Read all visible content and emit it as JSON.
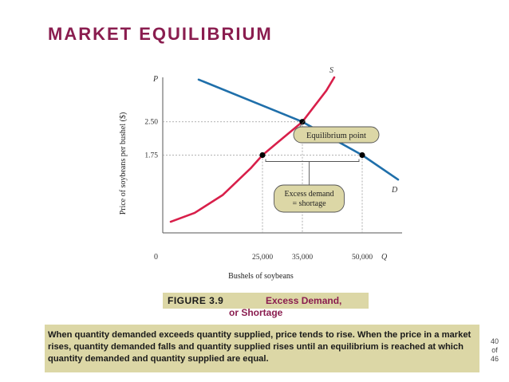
{
  "slide": {
    "title": "MARKET EQUILIBRIUM",
    "figure_number": "FIGURE 3.9",
    "figure_caption_line1": "Excess Demand,",
    "figure_caption_line2": "or Shortage",
    "description": "When quantity demanded exceeds quantity supplied, price tends to rise.  When the price in a market rises, quantity demanded falls and quantity supplied rises until an equilibrium is reached at which quantity demanded and quantity supplied are equal.",
    "page": {
      "current": "40",
      "of_label": "of",
      "total": "46"
    }
  },
  "chart_data": {
    "type": "line",
    "xlabel": "Bushels of soybeans",
    "ylabel": "Price of soybeans per bushel ($)",
    "x_axis_symbol": "Q",
    "y_axis_symbol": "P",
    "origin_label": "0",
    "xlim": [
      0,
      60000
    ],
    "ylim": [
      0,
      3.5
    ],
    "x_ticks": [
      {
        "value": 25000,
        "label": "25,000"
      },
      {
        "value": 35000,
        "label": "35,000"
      },
      {
        "value": 50000,
        "label": "50,000"
      }
    ],
    "y_ticks": [
      {
        "value": 2.5,
        "label": "2.50"
      },
      {
        "value": 1.75,
        "label": "1.75"
      }
    ],
    "grid": false,
    "series": [
      {
        "name": "S",
        "color": "#d81f4a",
        "points": [
          [
            2000,
            0.25
          ],
          [
            8000,
            0.45
          ],
          [
            15000,
            0.85
          ],
          [
            22000,
            1.45
          ],
          [
            25000,
            1.75
          ],
          [
            29000,
            2.05
          ],
          [
            33000,
            2.35
          ],
          [
            35000,
            2.5
          ],
          [
            38000,
            2.85
          ],
          [
            41000,
            3.2
          ],
          [
            43000,
            3.5
          ]
        ]
      },
      {
        "name": "D",
        "color": "#1f6faa",
        "points": [
          [
            9000,
            3.45
          ],
          [
            35000,
            2.5
          ],
          [
            50000,
            1.75
          ],
          [
            59000,
            1.2
          ]
        ]
      }
    ],
    "highlight_points": [
      {
        "x": 25000,
        "y": 1.75
      },
      {
        "x": 35000,
        "y": 2.5
      },
      {
        "x": 50000,
        "y": 1.75
      }
    ],
    "annotations": [
      {
        "text": "Equilibrium point",
        "target": [
          35000,
          2.5
        ]
      },
      {
        "text_lines": [
          "Excess demand",
          "= shortage"
        ],
        "span": [
          25000,
          50000
        ]
      }
    ]
  }
}
